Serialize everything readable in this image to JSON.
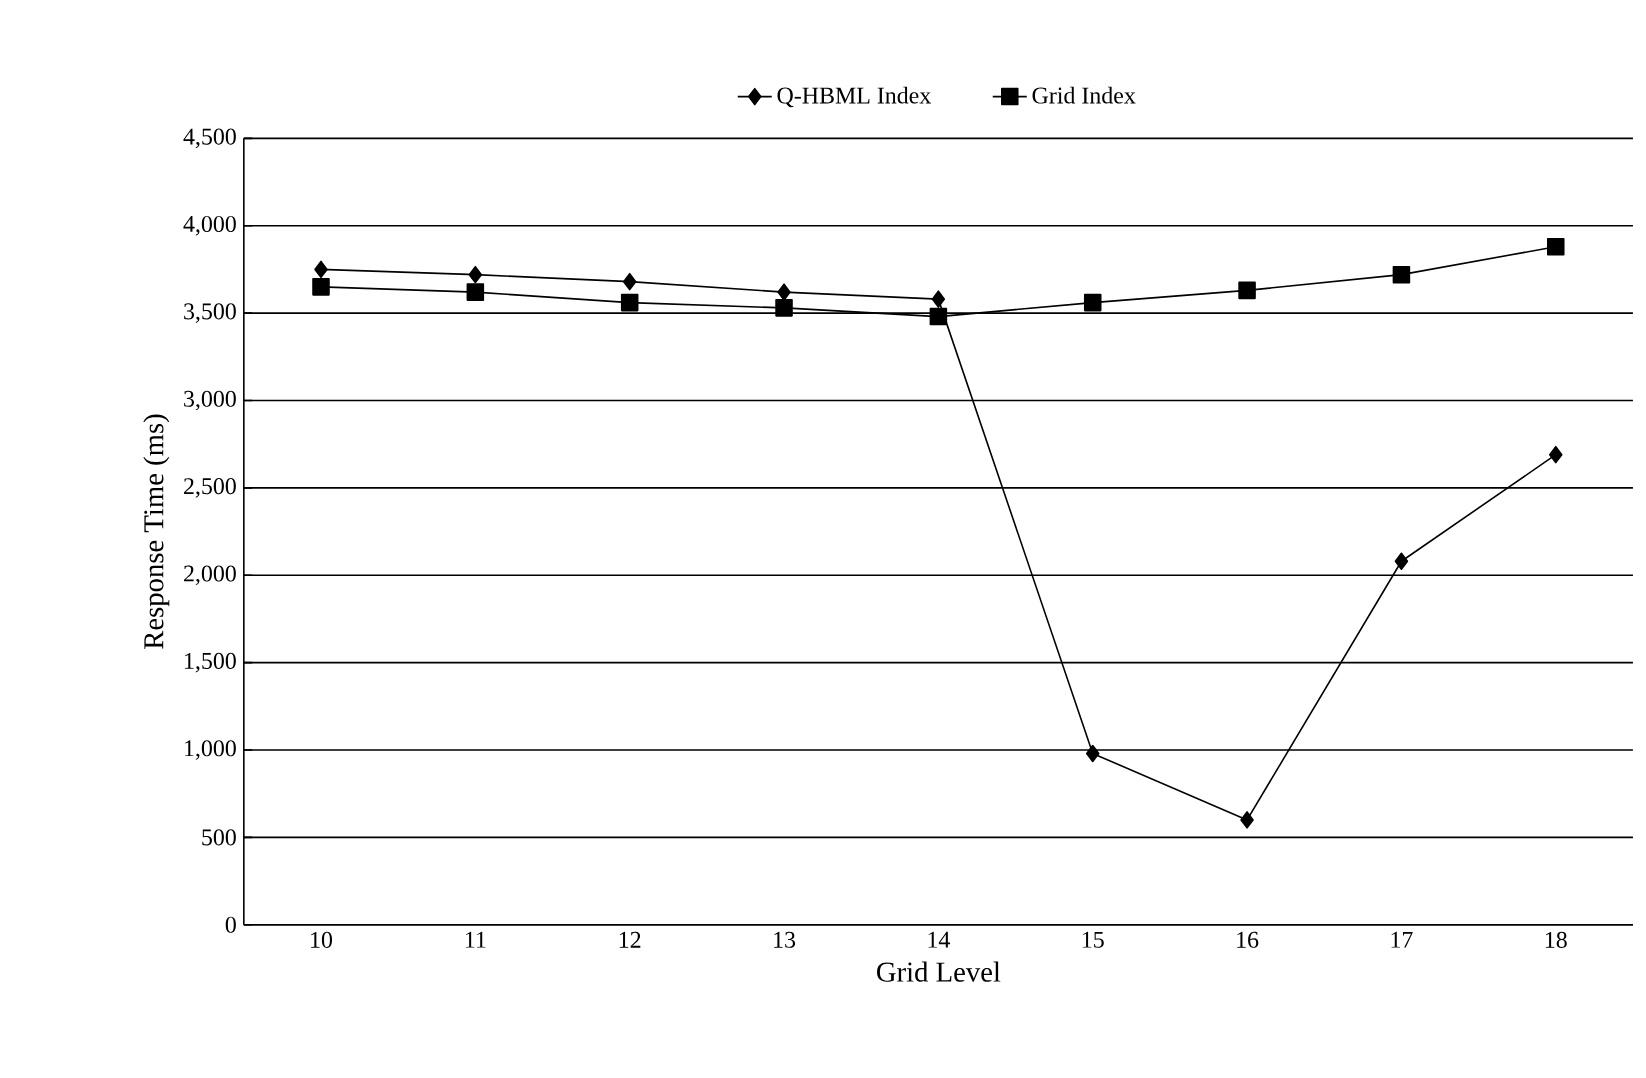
{
  "chart_data": {
    "type": "line",
    "xlabel": "Grid Level",
    "ylabel": "Response Time (ms)",
    "categories": [
      "10",
      "11",
      "12",
      "13",
      "14",
      "15",
      "16",
      "17",
      "18"
    ],
    "series": [
      {
        "name": "Q-HBML Index",
        "color": "#000000",
        "marker": "diamond",
        "values": [
          3750,
          3720,
          3680,
          3620,
          3580,
          980,
          600,
          2080,
          2690
        ]
      },
      {
        "name": "Grid Index",
        "color": "#000000",
        "marker": "square",
        "values": [
          3650,
          3620,
          3560,
          3530,
          3480,
          3560,
          3630,
          3720,
          3880
        ]
      }
    ],
    "ylim": [
      0,
      4500
    ],
    "yticks": [
      {
        "value": 0,
        "label": "0"
      },
      {
        "value": 500,
        "label": "500"
      },
      {
        "value": 1000,
        "label": "1,000"
      },
      {
        "value": 1500,
        "label": "1,500"
      },
      {
        "value": 2000,
        "label": "2,000"
      },
      {
        "value": 2500,
        "label": "2,500"
      },
      {
        "value": 3000,
        "label": "3,000"
      },
      {
        "value": 3500,
        "label": "3,500"
      },
      {
        "value": 4000,
        "label": "4,000"
      },
      {
        "value": 4500,
        "label": "4,500"
      }
    ],
    "grid": "y",
    "legend": "top",
    "line_style": "solid"
  }
}
